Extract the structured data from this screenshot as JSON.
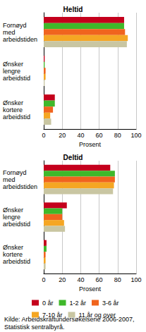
{
  "chart_data": [
    {
      "type": "bar",
      "title": "Heltid",
      "orientation": "horizontal",
      "grid": true,
      "categories": [
        "Fornøyd med arbeidstiden",
        "Ønsker lengre arbeidstid",
        "Ønsker kortere arbeidstid"
      ],
      "xlabel": "Prosent",
      "xlim": [
        0,
        100
      ],
      "xticks": [
        0,
        20,
        40,
        60,
        80,
        100
      ],
      "series": [
        {
          "name": "0 år",
          "color": "#c4001c",
          "values": [
            87,
            1,
            12
          ]
        },
        {
          "name": "1-2 år",
          "color": "#3fb82a",
          "values": [
            87,
            1,
            12
          ]
        },
        {
          "name": "3-6 år",
          "color": "#f0641e",
          "values": [
            88,
            2,
            10
          ]
        },
        {
          "name": "7-10 år",
          "color": "#f5a623",
          "values": [
            91,
            2,
            7
          ]
        },
        {
          "name": "11 år og over",
          "color": "#c9c6a2",
          "values": [
            90,
            1,
            8
          ]
        }
      ]
    },
    {
      "type": "bar",
      "title": "Deltid",
      "orientation": "horizontal",
      "grid": true,
      "categories": [
        "Fornøyd med arbeidstiden",
        "Ønsker lengre arbeidstid",
        "Ønsker kortere arbeidstid"
      ],
      "xlabel": "Prosent",
      "xlim": [
        0,
        100
      ],
      "xticks": [
        0,
        20,
        40,
        60,
        80,
        100
      ],
      "series": [
        {
          "name": "0 år",
          "color": "#c4001c",
          "values": [
            72,
            25,
            3
          ]
        },
        {
          "name": "1-2 år",
          "color": "#3fb82a",
          "values": [
            77,
            20,
            3
          ]
        },
        {
          "name": "3-6 år",
          "color": "#f0641e",
          "values": [
            77,
            20,
            2
          ]
        },
        {
          "name": "7-10 år",
          "color": "#f5a623",
          "values": [
            76,
            22,
            2
          ]
        },
        {
          "name": "11 år og over",
          "color": "#c9c6a2",
          "values": [
            75,
            23,
            2
          ]
        }
      ]
    }
  ],
  "source": "Kilde: Arbeidskraftundersøkelsene 2006-2007, Statistisk sentralbyrå."
}
